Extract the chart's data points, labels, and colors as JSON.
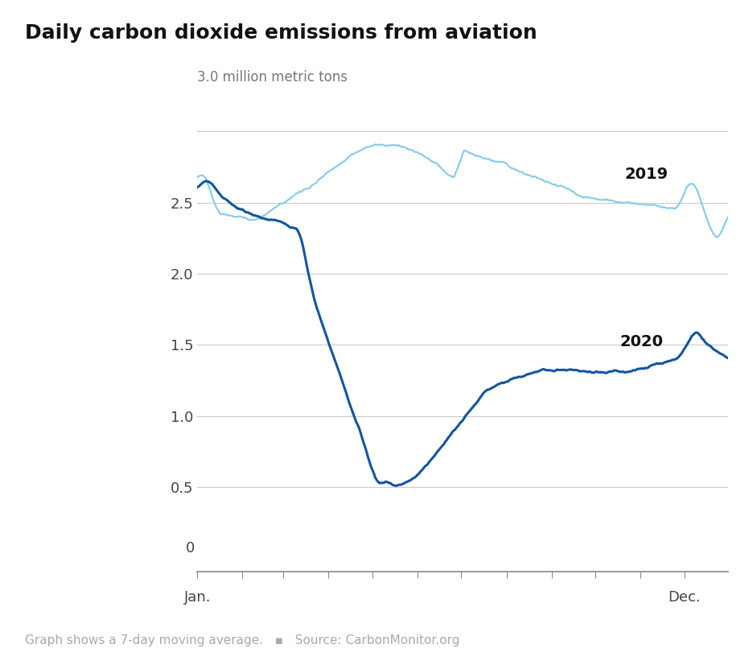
{
  "title": "Daily carbon dioxide emissions from aviation",
  "ylabel_top": "3.0 million metric tons",
  "xlabel_left": "Jan.",
  "xlabel_right": "Dec.",
  "footnote": "Graph shows a 7-day moving average.   ▪   Source: CarbonMonitor.org",
  "yticks_main": [
    0.5,
    1.0,
    1.5,
    2.0,
    2.5
  ],
  "ytick_labels_main": [
    "0.5",
    "1.0",
    "1.5",
    "2.0",
    "2.5"
  ],
  "ylim_main": [
    0.3,
    3.2
  ],
  "color_2019": "#87CEEB",
  "color_2020": "#1255a0",
  "label_2019": "2019",
  "label_2020": "2020",
  "n_days": 365,
  "title_fontsize": 18,
  "tick_fontsize": 13,
  "label_fontsize": 13,
  "footnote_fontsize": 11
}
